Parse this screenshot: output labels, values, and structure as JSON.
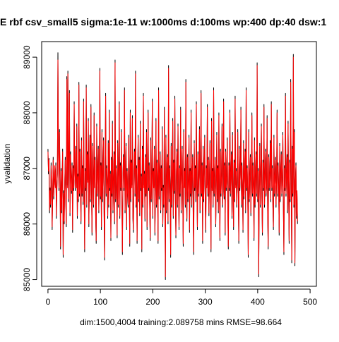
{
  "chart_data": {
    "type": "line",
    "title": "E  rbf csv_small5 sigma:1e-11 w:1000ms d:100ms wp:400 dp:40 dsw:1",
    "xlabel": "dim:1500,4004 training:2.089758 mins RMSE=98.664",
    "ylabel": "yvalidation",
    "xlim": [
      -12,
      512
    ],
    "ylim": [
      84880,
      89280
    ],
    "xticks": [
      0,
      100,
      200,
      300,
      400,
      500
    ],
    "yticks": [
      85000,
      86000,
      87000,
      88000,
      89000
    ],
    "grid": false,
    "legend": "none",
    "n_points": 500,
    "y_range_observed": [
      85000,
      89080
    ],
    "series": [
      {
        "color": "#000000",
        "x_start": 0,
        "values": [
          87350,
          86900,
          87180,
          86200,
          86650,
          86300,
          87100,
          86800,
          85900,
          86500,
          87200,
          86450,
          86800,
          87000,
          86700,
          87100,
          86100,
          86650,
          86900,
          89080,
          87350,
          86600,
          87700,
          86900,
          85550,
          87000,
          86200,
          86800,
          87350,
          85400,
          86600,
          86000,
          86750,
          87200,
          86400,
          85950,
          88650,
          86700,
          88750,
          86400,
          87200,
          88400,
          86150,
          87300,
          86900,
          86550,
          87100,
          85850,
          87050,
          86600,
          88200,
          86950,
          86600,
          87400,
          86700,
          87800,
          86100,
          86900,
          86400,
          88550,
          86500,
          87350,
          86700,
          86000,
          87550,
          86500,
          87050,
          86350,
          88250,
          86700,
          85500,
          87000,
          86600,
          88500,
          86300,
          87300,
          86800,
          87900,
          85950,
          86750,
          87600,
          86400,
          88150,
          86600,
          85800,
          87450,
          86900,
          86300,
          88000,
          86700,
          87200,
          86100,
          85650,
          87800,
          86500,
          86950,
          87400,
          86200,
          86900,
          88800,
          86450,
          87100,
          85900,
          87700,
          86400,
          86900,
          87550,
          86200,
          85350,
          86950,
          88350,
          86500,
          87050,
          86800,
          86100,
          87500,
          86300,
          88050,
          86600,
          86950,
          85700,
          87200,
          86500,
          87850,
          86200,
          86800,
          87300,
          86000,
          88950,
          86400,
          87050,
          86700,
          85750,
          87500,
          86300,
          86950,
          88200,
          86100,
          87100,
          86600,
          87700,
          86400,
          85450,
          86900,
          87250,
          86600,
          88450,
          86200,
          86800,
          87450,
          85900,
          87000,
          86500,
          86300,
          87600,
          86700,
          85600,
          88050,
          86400,
          87150,
          86700,
          87950,
          86100,
          85850,
          86950,
          87350,
          86500,
          88750,
          86300,
          87050,
          85650,
          86800,
          87600,
          86400,
          87200,
          86150,
          87850,
          86600,
          86900,
          85500,
          87400,
          86300,
          88350,
          86700,
          86950,
          86050,
          87250,
          86500,
          87700,
          85900,
          86800,
          88050,
          86600,
          87100,
          86300,
          85700,
          87550,
          86400,
          86950,
          88250,
          86100,
          87000,
          86700,
          87400,
          85800,
          86500,
          87900,
          86300,
          87150,
          86700,
          85650,
          88450,
          86450,
          86900,
          87300,
          86200,
          87050,
          86600,
          87750,
          85950,
          86700,
          86300,
          88100,
          86500,
          85000,
          87600,
          86200,
          86900,
          87250,
          86000,
          88850,
          86400,
          87050,
          86700,
          85400,
          87450,
          86300,
          86800,
          87900,
          86100,
          87150,
          86550,
          88300,
          86400,
          85750,
          86950,
          87350,
          86300,
          87800,
          86600,
          85900,
          87050,
          86500,
          88100,
          86200,
          86900,
          87400,
          86450,
          85600,
          87700,
          86700,
          87000,
          86300,
          88600,
          86500,
          86050,
          87250,
          86400,
          86800,
          87600,
          85850,
          87000,
          86500,
          88050,
          86300,
          86900,
          87250,
          86100,
          85450,
          87500,
          86600,
          87050,
          86400,
          88200,
          86700,
          85900,
          87300,
          86500,
          86900,
          87750,
          86200,
          86750,
          88400,
          86500,
          87100,
          85650,
          87400,
          86400,
          86950,
          87600,
          86300,
          85850,
          87050,
          86700,
          88150,
          86500,
          87200,
          86150,
          86850,
          87500,
          86400,
          85500,
          87900,
          86650,
          87000,
          86300,
          88450,
          86500,
          86800,
          87200,
          85950,
          86700,
          87650,
          86400,
          87050,
          86200,
          88000,
          86700,
          85700,
          87350,
          86500,
          86900,
          87800,
          86300,
          86600,
          88250,
          86450,
          87100,
          85800,
          87350,
          86600,
          86850,
          87550,
          86250,
          85550,
          87100,
          86600,
          88050,
          86500,
          86950,
          87300,
          86100,
          87650,
          86500,
          85900,
          87150,
          86400,
          88300,
          86700,
          87000,
          86300,
          86800,
          87700,
          86500,
          85650,
          87400,
          86600,
          86950,
          88100,
          86300,
          87100,
          86700,
          85850,
          87500,
          86450,
          86900,
          87350,
          86200,
          88450,
          86600,
          87050,
          86500,
          85400,
          87700,
          86400,
          86900,
          87250,
          86150,
          86800,
          88000,
          86500,
          87100,
          86700,
          85700,
          87550,
          86300,
          86900,
          87300,
          86500,
          88900,
          86400,
          87000,
          85050,
          86600,
          87450,
          86300,
          86950,
          87800,
          86500,
          85800,
          87150,
          86600,
          88150,
          86300,
          86900,
          87350,
          86500,
          86700,
          87950,
          86200,
          85550,
          87250,
          86600,
          86950,
          87500,
          86400,
          88200,
          86600,
          87050,
          86300,
          85900,
          87600,
          86500,
          86900,
          87200,
          86300,
          86800,
          88050,
          86500,
          87100,
          86700,
          85800,
          87450,
          86400,
          86950,
          87300,
          86500,
          86750,
          87650,
          86300,
          85450,
          87050,
          86600,
          88350,
          86500,
          86900,
          87250,
          86200,
          87850,
          86500,
          85650,
          87150,
          86400,
          88600,
          86700,
          85300,
          87400,
          86500,
          89050,
          86300,
          87700,
          85250,
          86800,
          87100,
          86100,
          86550,
          86000
        ]
      },
      {
        "color": "#ff0000",
        "x_start": 0,
        "values": [
          87300,
          86950,
          87150,
          86250,
          86600,
          86350,
          87050,
          86850,
          85950,
          86450,
          87150,
          86500,
          86750,
          87050,
          86650,
          87050,
          86150,
          86600,
          86950,
          88950,
          87300,
          86650,
          87650,
          86850,
          85600,
          86950,
          86250,
          86750,
          87300,
          85450,
          86550,
          86050,
          86700,
          87150,
          86450,
          86000,
          88600,
          86650,
          88700,
          86450,
          87150,
          88350,
          86200,
          87250,
          86850,
          86600,
          87050,
          85900,
          87000,
          86650,
          88150,
          86900,
          86650,
          87350,
          86650,
          87750,
          86150,
          86850,
          86450,
          88500,
          86550,
          87300,
          86650,
          86050,
          87500,
          86550,
          87000,
          86400,
          88200,
          86650,
          85550,
          86950,
          86650,
          88450,
          86350,
          87250,
          86750,
          87850,
          86000,
          86700,
          87550,
          86450,
          88100,
          86650,
          85850,
          87400,
          86850,
          86350,
          87950,
          86650,
          87150,
          86150,
          85700,
          87750,
          86550,
          86900,
          87350,
          86250,
          86850,
          88750,
          86500,
          87050,
          85950,
          87650,
          86450,
          86850,
          87500,
          86250,
          85400,
          86900,
          88300,
          86550,
          87000,
          86750,
          86150,
          87450,
          86350,
          88000,
          86650,
          86900,
          85750,
          87150,
          86550,
          87800,
          86250,
          86750,
          87250,
          86050,
          88900,
          86450,
          87000,
          86650,
          85800,
          87450,
          86350,
          86900,
          88150,
          86150,
          87050,
          86650,
          87650,
          86450,
          85500,
          86850,
          87200,
          86650,
          88400,
          86250,
          86750,
          87400,
          85950,
          86950,
          86550,
          86350,
          87550,
          86650,
          85650,
          88000,
          86450,
          87100,
          86650,
          87900,
          86150,
          85900,
          86900,
          87300,
          86550,
          88700,
          86350,
          87000,
          85700,
          86750,
          87550,
          86450,
          87150,
          86200,
          87800,
          86650,
          86850,
          85550,
          87350,
          86350,
          88300,
          86650,
          86900,
          86100,
          87200,
          86550,
          87650,
          85950,
          86750,
          88000,
          86650,
          87050,
          86350,
          85750,
          87500,
          86450,
          86900,
          88200,
          86150,
          86950,
          86650,
          87350,
          85850,
          86550,
          87850,
          86350,
          87100,
          86650,
          85700,
          88400,
          86500,
          86850,
          87250,
          86250,
          87000,
          86650,
          87700,
          86000,
          86650,
          86350,
          88050,
          86550,
          85050,
          87550,
          86250,
          86850,
          87200,
          86050,
          88800,
          86450,
          87000,
          86650,
          85450,
          87400,
          86350,
          86750,
          87850,
          86150,
          87100,
          86600,
          88250,
          86450,
          85800,
          86900,
          87300,
          86350,
          87750,
          86650,
          85950,
          87000,
          86550,
          88050,
          86250,
          86850,
          87350,
          86500,
          85650,
          87650,
          86650,
          86950,
          86350,
          88550,
          86550,
          86100,
          87200,
          86450,
          86750,
          87550,
          85900,
          86950,
          86550,
          88000,
          86350,
          86850,
          87200,
          86150,
          85500,
          87450,
          86650,
          87000,
          86450,
          88150,
          86650,
          85950,
          87250,
          86550,
          86850,
          87700,
          86250,
          86700,
          88350,
          86550,
          87050,
          85700,
          87350,
          86450,
          86900,
          87550,
          86350,
          85900,
          87000,
          86650,
          88100,
          86550,
          87150,
          86200,
          86800,
          87450,
          86450,
          85550,
          87850,
          86600,
          86950,
          86350,
          88400,
          86550,
          86750,
          87150,
          86000,
          86650,
          87600,
          86450,
          87000,
          86250,
          87950,
          86650,
          85750,
          87300,
          86550,
          86850,
          87750,
          86350,
          86650,
          88200,
          86500,
          87050,
          85850,
          87300,
          86650,
          86800,
          87500,
          86300,
          85600,
          87050,
          86650,
          88000,
          86550,
          86900,
          87250,
          86150,
          87600,
          86550,
          85950,
          87100,
          86450,
          88250,
          86650,
          86950,
          86350,
          86750,
          87650,
          86550,
          85700,
          87350,
          86650,
          86900,
          88050,
          86350,
          87050,
          86650,
          85900,
          87450,
          86500,
          86850,
          87300,
          86250,
          88400,
          86650,
          87000,
          86550,
          85450,
          87650,
          86450,
          86850,
          87200,
          86200,
          86750,
          87950,
          86550,
          87050,
          86650,
          85750,
          87500,
          86350,
          86850,
          87250,
          86550,
          88850,
          86450,
          86950,
          85100,
          86650,
          87400,
          86350,
          86900,
          87750,
          86550,
          85850,
          87100,
          86650,
          88100,
          86350,
          86850,
          87300,
          86550,
          86650,
          87900,
          86250,
          85600,
          87200,
          86650,
          86900,
          87450,
          86450,
          88150,
          86650,
          87000,
          86350,
          85950,
          87550,
          86550,
          86850,
          87150,
          86350,
          86750,
          88000,
          86550,
          87050,
          86650,
          85850,
          87400,
          86450,
          86900,
          87250,
          86550,
          86700,
          87600,
          86350,
          85500,
          87000,
          86650,
          88300,
          86550,
          86850,
          87200,
          86250,
          87800,
          86550,
          85700,
          87100,
          86450,
          88550,
          86650,
          85350,
          87350,
          86550,
          89000,
          86350,
          87650,
          85300,
          86750,
          87050,
          86150,
          86600,
          86050
        ]
      }
    ]
  }
}
